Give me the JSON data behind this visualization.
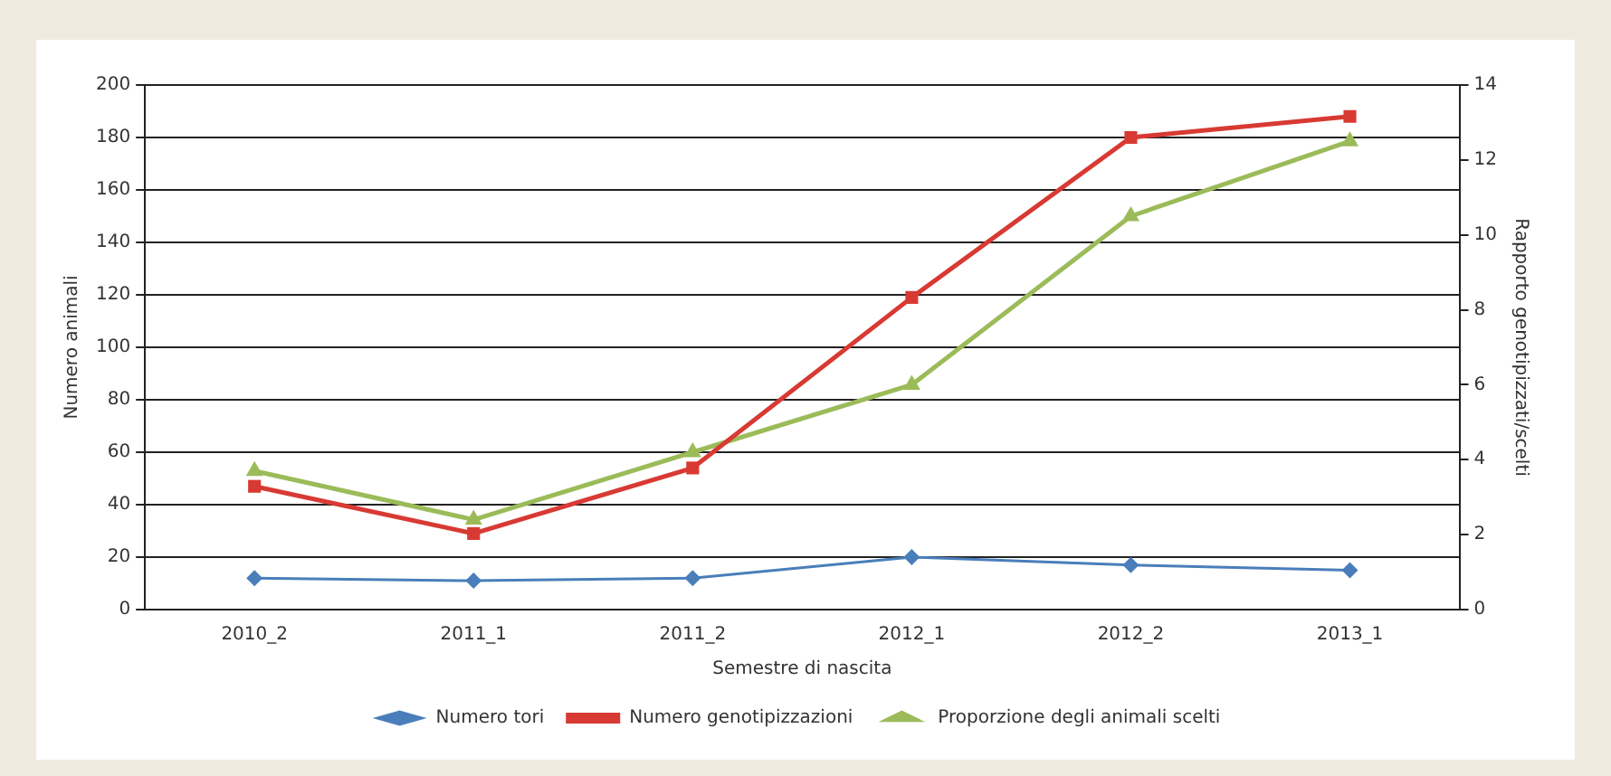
{
  "chart_data": {
    "type": "line",
    "xlabel": "Semestre di nascita",
    "ylabel": "Numero animali",
    "y2label": "Rapporto genotipizzati/scelti",
    "categories": [
      "2010_2",
      "2011_1",
      "2011_2",
      "2012_1",
      "2012_2",
      "2013_1"
    ],
    "series": [
      {
        "name": "Numero tori",
        "color": "#4a7ebb",
        "marker": "diamond",
        "values": [
          12,
          11,
          12,
          20,
          17,
          15
        ]
      },
      {
        "name": "Numero genotipizzazioni",
        "color": "#d83a33",
        "marker": "square",
        "values": [
          47,
          29,
          54,
          119,
          180,
          188
        ]
      },
      {
        "name": "Proporzione degli animali scelti",
        "color": "#9bbb59",
        "marker": "triangle",
        "axis": "y2",
        "values": [
          3.7,
          2.4,
          4.2,
          6.0,
          10.5,
          12.5
        ]
      }
    ],
    "ylim": [
      0,
      200
    ],
    "yticks": [
      0,
      20,
      40,
      60,
      80,
      100,
      120,
      140,
      160,
      180,
      200
    ],
    "y2lim": [
      0,
      14
    ],
    "y2ticks": [
      0,
      2,
      4,
      6,
      8,
      10,
      12,
      14
    ],
    "grid": "y",
    "legend": "bottom"
  }
}
